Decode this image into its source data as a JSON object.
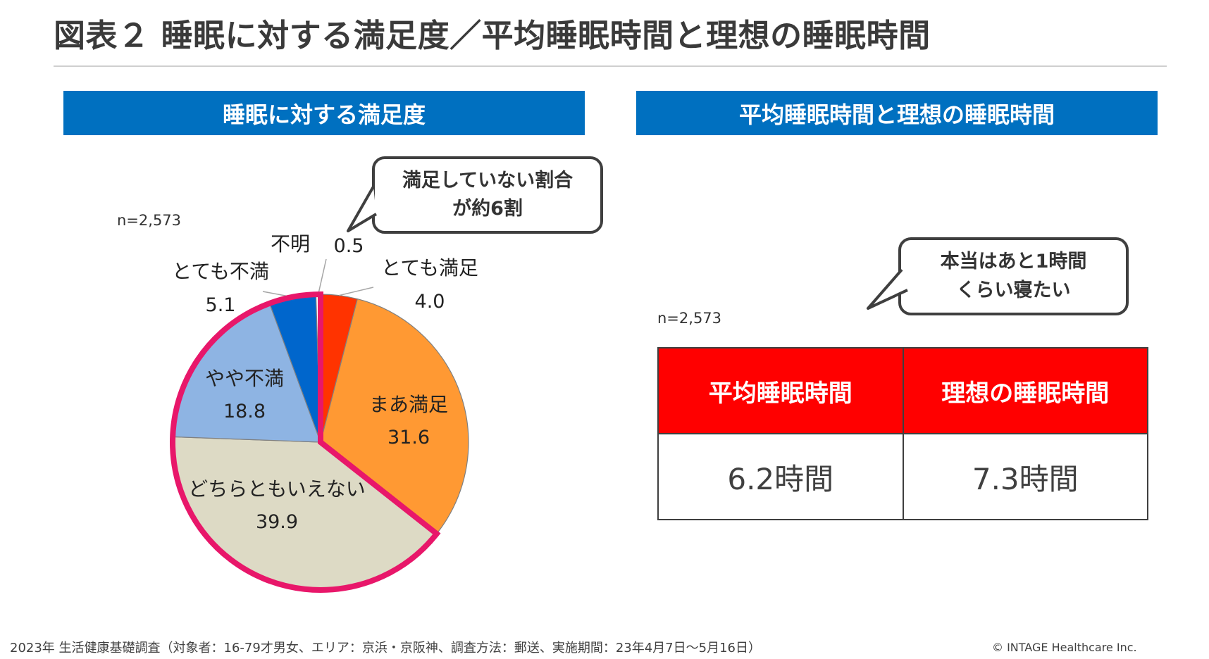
{
  "title": "図表２ 睡眠に対する満足度／平均睡眠時間と理想の睡眠時間",
  "left_panel": {
    "heading": "睡眠に対する満足度",
    "n_label": "n=2,573",
    "callout_line1": "満足していない割合",
    "callout_line2": "が約6割"
  },
  "right_panel": {
    "heading": "平均睡眠時間と理想の睡眠時間",
    "n_label": "n=2,573",
    "callout_line1": "本当はあと1時間",
    "callout_line2": "くらい寝たい"
  },
  "chart_data": [
    {
      "type": "pie",
      "title": "",
      "start": "12 o'clock",
      "direction": "clockwise",
      "highlight": [
        "どちらともいえない",
        "やや不満",
        "とても不満"
      ],
      "highlight_color": "#e8176a",
      "slices": [
        {
          "label": "とても満足",
          "value": 4.0,
          "value_text": "4.0",
          "color": "#ff3300"
        },
        {
          "label": "まあ満足",
          "value": 31.6,
          "value_text": "31.6",
          "color": "#ff9933"
        },
        {
          "label": "どちらともいえない",
          "value": 39.9,
          "value_text": "39.9",
          "color": "#dddac5"
        },
        {
          "label": "やや不満",
          "value": 18.8,
          "value_text": "18.8",
          "color": "#8eb4e3"
        },
        {
          "label": "とても不満",
          "value": 5.1,
          "value_text": "5.1",
          "color": "#0066cc"
        },
        {
          "label": "不明",
          "value": 0.5,
          "value_text": "0.5",
          "color": "#ffffff"
        }
      ]
    },
    {
      "type": "table",
      "columns": [
        "平均睡眠時間",
        "理想の睡眠時間"
      ],
      "values": [
        "6.2時間",
        "7.3時間"
      ],
      "header_color": "#ff0000"
    }
  ],
  "source_note": "2023年 生活健康基礎調査（対象者：16-79才男女、エリア：京浜・京阪神、調査方法：郵送、実施期間：23年4月7日～5月16日）",
  "copyright": "© INTAGE Healthcare Inc."
}
